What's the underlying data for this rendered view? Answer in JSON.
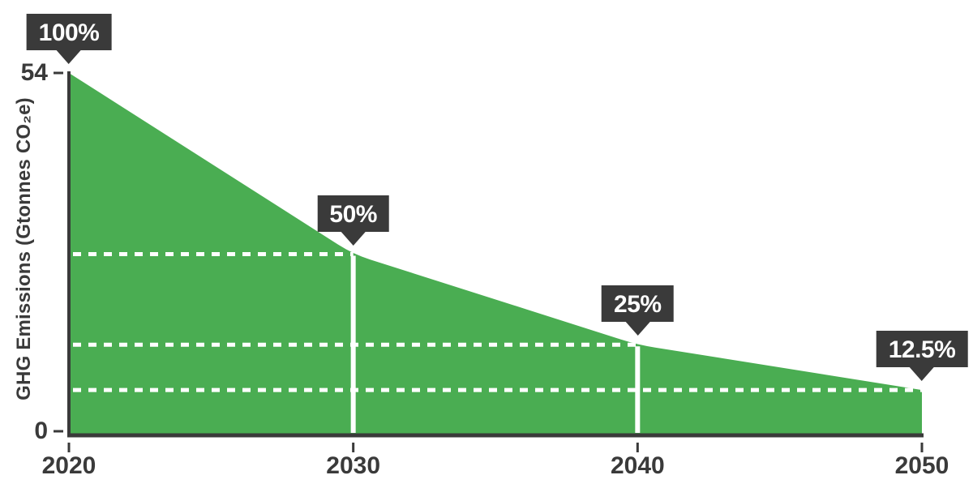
{
  "chart_data": {
    "type": "area",
    "title": "",
    "xlabel": "",
    "ylabel": "GHG Emissions (Gtonnes CO₂e)",
    "x": [
      2020,
      2030,
      2040,
      2050
    ],
    "x_tick_labels": [
      "2020",
      "2030",
      "2040",
      "2050"
    ],
    "values": [
      54,
      27,
      13.5,
      6.75
    ],
    "callouts": [
      {
        "x": 2020,
        "value": 54,
        "label": "100%"
      },
      {
        "x": 2030,
        "value": 27,
        "label": "50%"
      },
      {
        "x": 2040,
        "value": 13.5,
        "label": "25%"
      },
      {
        "x": 2050,
        "value": 6.75,
        "label": "12.5%"
      }
    ],
    "y_axis_ticks": [
      {
        "value": 54,
        "label": "54"
      },
      {
        "value": 0,
        "label": "0"
      }
    ],
    "xlim": [
      2020,
      2050
    ],
    "ylim": [
      0,
      54
    ],
    "grid": "white dashed guide lines at the 50%, 25% and 12.5% levels, white vertical marker lines at 2030 and 2040",
    "legend": "none",
    "colors": {
      "area": "#4aad52",
      "axis": "#3a3a3a",
      "guides": "#ffffff",
      "callout_bg": "#3a3a3a",
      "callout_text": "#ffffff"
    }
  }
}
